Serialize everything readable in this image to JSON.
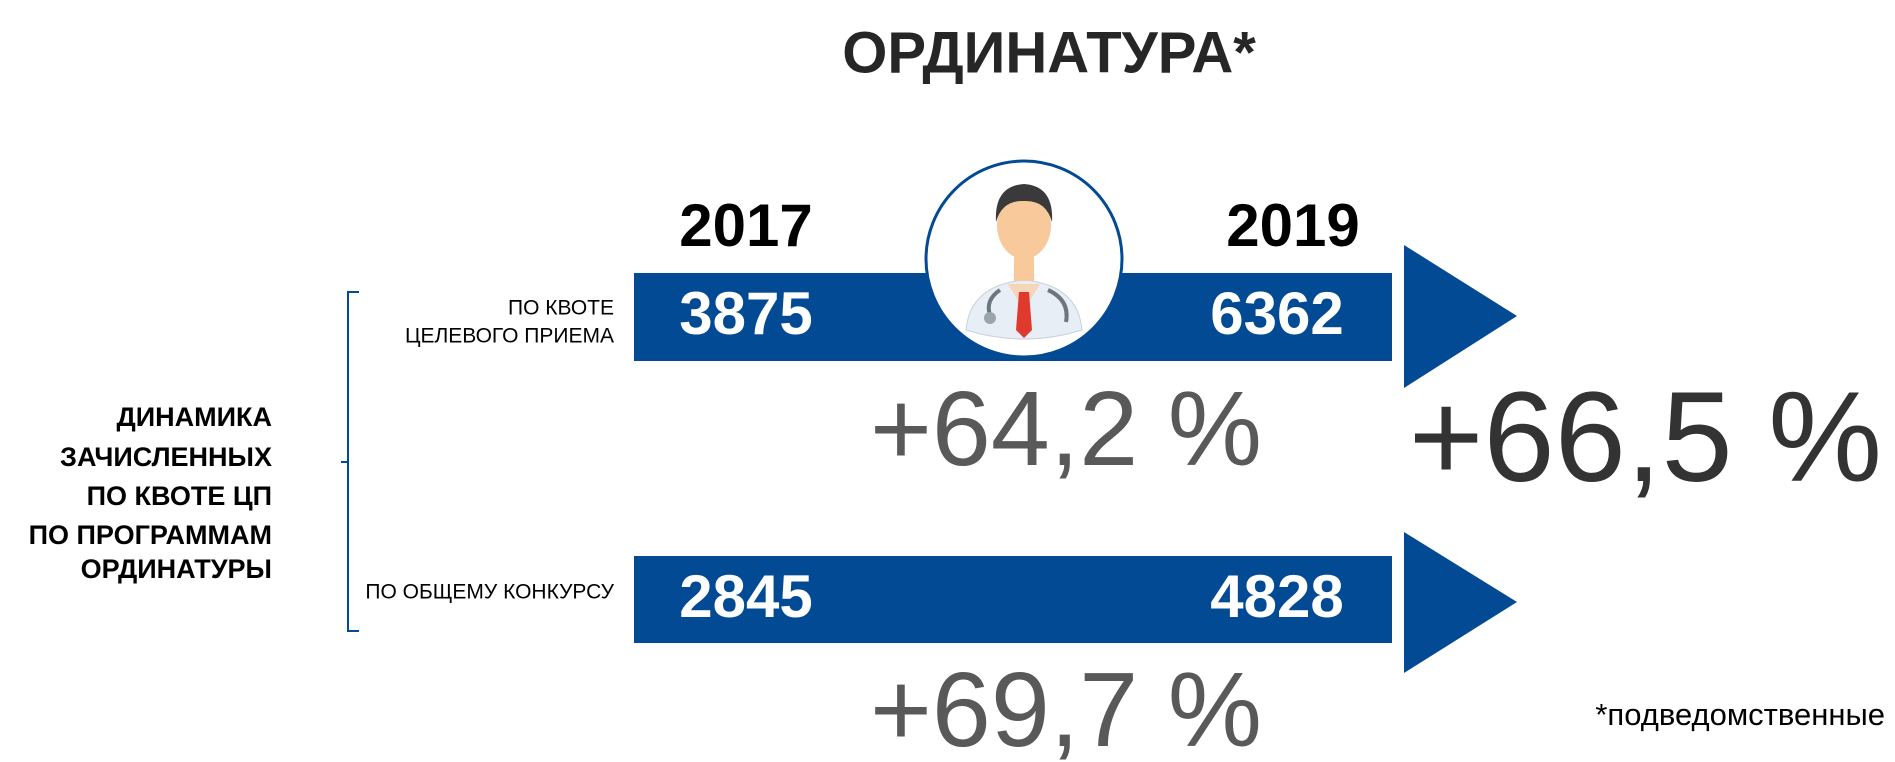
{
  "header": {
    "title": "ОРДИНАТУРА*"
  },
  "years": [
    "2017",
    "2019"
  ],
  "side_label": [
    "ДИНАМИКА",
    "ЗАЧИСЛЕННЫХ",
    "ПО КВОТЕ ЦП",
    "ПО ПРОГРАММАМ",
    "ОРДИНАТУРЫ"
  ],
  "rows": [
    {
      "label": [
        "ПО КВОТЕ",
        "ЦЕЛЕВОГО ПРИЕМА"
      ],
      "values": [
        "3875",
        "6362"
      ],
      "change": "+64,2 %"
    },
    {
      "label": [
        "ПО ОБЩЕМУ КОНКУРСУ"
      ],
      "values": [
        "2845",
        "4828"
      ],
      "change": "+69,7 %"
    }
  ],
  "total_change": "+66,5 %",
  "footnote": "*подведомственные"
}
